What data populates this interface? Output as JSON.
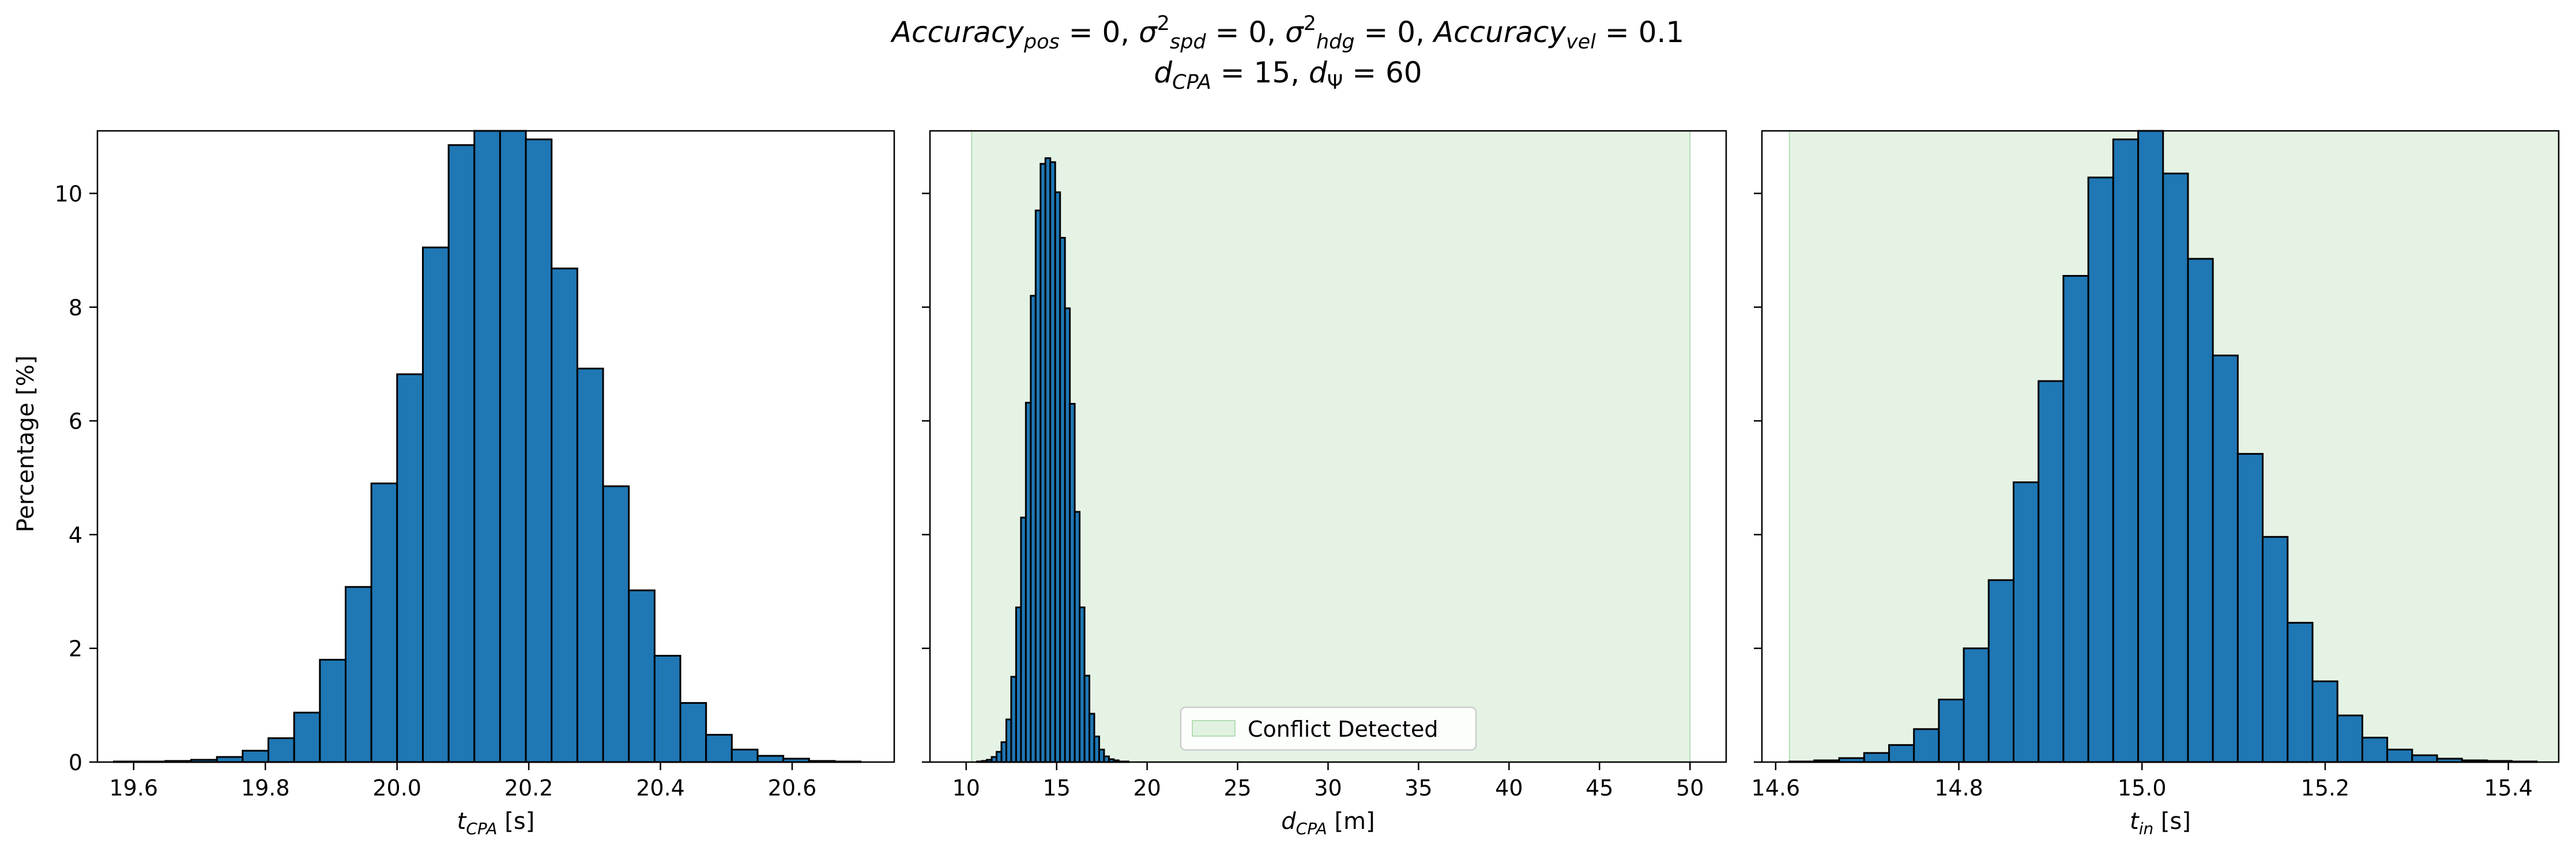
{
  "figure": {
    "title_line1": [
      {
        "t": "Accuracy",
        "i": true
      },
      {
        "t": "pos",
        "i": true,
        "sub": true
      },
      {
        "t": " = 0, "
      },
      {
        "t": "σ",
        "i": true
      },
      {
        "t": "2",
        "sup": true
      },
      {
        "t": "spd",
        "i": true,
        "sub": true
      },
      {
        "t": " = 0, "
      },
      {
        "t": "σ",
        "i": true
      },
      {
        "t": "2",
        "sup": true
      },
      {
        "t": "hdg",
        "i": true,
        "sub": true
      },
      {
        "t": " = 0, "
      },
      {
        "t": "Accuracy",
        "i": true
      },
      {
        "t": "vel",
        "i": true,
        "sub": true
      },
      {
        "t": " = 0.1"
      }
    ],
    "title_line2": [
      {
        "t": "d",
        "i": true
      },
      {
        "t": "CPA",
        "i": true,
        "sub": true
      },
      {
        "t": " = 15, "
      },
      {
        "t": "d",
        "i": true
      },
      {
        "t": "Ψ",
        "sub": true
      },
      {
        "t": " = 60"
      }
    ],
    "shared_ylabel": "Percentage [%]",
    "colors": {
      "bar_fill": "#1f77b4",
      "bar_edge": "#000000",
      "region_fill": "#2ca02c",
      "region_alpha": 0.12
    }
  },
  "chart_data": [
    {
      "type": "bar",
      "xlabel_parts": [
        {
          "t": "t",
          "i": true
        },
        {
          "t": "CPA",
          "i": true,
          "sub": true
        },
        {
          "t": " [s]"
        }
      ],
      "xlim": [
        19.545,
        20.755
      ],
      "ylim": [
        0,
        11.1
      ],
      "xticks": [
        19.6,
        19.8,
        20.0,
        20.2,
        20.4,
        20.6
      ],
      "xtick_labels": [
        "19.6",
        "19.8",
        "20.0",
        "20.2",
        "20.4",
        "20.6"
      ],
      "yticks": [
        0,
        2,
        4,
        6,
        8,
        10
      ],
      "ytick_labels": [
        "0",
        "2",
        "4",
        "6",
        "8",
        "10"
      ],
      "bin_edges": [
        19.57,
        19.6091,
        19.6482,
        19.6873,
        19.7264,
        19.7655,
        19.8046,
        19.8437,
        19.8828,
        19.9219,
        19.961,
        20.0001,
        20.0392,
        20.0783,
        20.1174,
        20.1565,
        20.1956,
        20.2347,
        20.2738,
        20.3129,
        20.352,
        20.3911,
        20.4302,
        20.4693,
        20.5084,
        20.5475,
        20.5866,
        20.6257,
        20.6648,
        20.7039
      ],
      "values": [
        0.01,
        0.01,
        0.02,
        0.04,
        0.09,
        0.2,
        0.42,
        0.87,
        1.8,
        3.08,
        4.9,
        6.82,
        9.05,
        10.85,
        11.1,
        11.1,
        10.95,
        8.68,
        6.92,
        4.85,
        3.02,
        1.87,
        1.04,
        0.48,
        0.22,
        0.11,
        0.06,
        0.02,
        0.01
      ]
    },
    {
      "type": "bar",
      "xlabel_parts": [
        {
          "t": "d",
          "i": true
        },
        {
          "t": "CPA",
          "i": true,
          "sub": true
        },
        {
          "t": " [m]"
        }
      ],
      "xlim": [
        8.0,
        52.0
      ],
      "ylim": [
        0,
        11.1
      ],
      "xticks": [
        10,
        15,
        20,
        25,
        30,
        35,
        40,
        45,
        50
      ],
      "xtick_labels": [
        "10",
        "15",
        "20",
        "25",
        "30",
        "35",
        "40",
        "45",
        "50"
      ],
      "yticks": [
        0,
        2,
        4,
        6,
        8,
        10
      ],
      "shaded_region": [
        10.3,
        50.0
      ],
      "legend": {
        "label": "Conflict Detected",
        "position": "lower-center"
      },
      "bin_edges": [
        10.6,
        10.87,
        11.14,
        11.41,
        11.68,
        11.95,
        12.22,
        12.49,
        12.76,
        13.03,
        13.3,
        13.57,
        13.84,
        14.11,
        14.38,
        14.65,
        14.92,
        15.19,
        15.46,
        15.73,
        16.0,
        16.27,
        16.54,
        16.81,
        17.08,
        17.35,
        17.62,
        17.89,
        18.16,
        18.43,
        18.7,
        18.97
      ],
      "values": [
        0.01,
        0.02,
        0.04,
        0.09,
        0.18,
        0.35,
        0.75,
        1.5,
        2.72,
        4.3,
        6.32,
        8.2,
        9.7,
        10.52,
        10.62,
        10.55,
        10.02,
        9.22,
        7.98,
        6.3,
        4.4,
        2.72,
        1.52,
        0.85,
        0.45,
        0.22,
        0.1,
        0.05,
        0.03,
        0.01,
        0.01
      ]
    },
    {
      "type": "bar",
      "xlabel_parts": [
        {
          "t": "t",
          "i": true
        },
        {
          "t": "in",
          "i": true,
          "sub": true
        },
        {
          "t": " [s]"
        }
      ],
      "xlim": [
        14.585,
        15.455
      ],
      "ylim": [
        0,
        11.1
      ],
      "xticks": [
        14.6,
        14.8,
        15.0,
        15.2,
        15.4
      ],
      "xtick_labels": [
        "14.6",
        "14.8",
        "15.0",
        "15.2",
        "15.4"
      ],
      "yticks": [
        0,
        2,
        4,
        6,
        8,
        10
      ],
      "shaded_region": [
        14.615,
        15.455
      ],
      "bin_edges": [
        14.615,
        14.6422,
        14.6694,
        14.6966,
        14.7238,
        14.751,
        14.7782,
        14.8054,
        14.8326,
        14.8598,
        14.887,
        14.9142,
        14.9414,
        14.9686,
        14.9958,
        15.023,
        15.0502,
        15.0774,
        15.1046,
        15.1318,
        15.159,
        15.1862,
        15.2134,
        15.2406,
        15.2678,
        15.295,
        15.3222,
        15.3494,
        15.3766,
        15.4038,
        15.431
      ],
      "values": [
        0.01,
        0.03,
        0.07,
        0.16,
        0.3,
        0.58,
        1.1,
        2.0,
        3.2,
        4.92,
        6.7,
        8.55,
        10.28,
        10.95,
        11.1,
        10.35,
        8.85,
        7.15,
        5.42,
        3.96,
        2.45,
        1.42,
        0.82,
        0.43,
        0.22,
        0.12,
        0.06,
        0.03,
        0.02,
        0.01
      ]
    }
  ]
}
